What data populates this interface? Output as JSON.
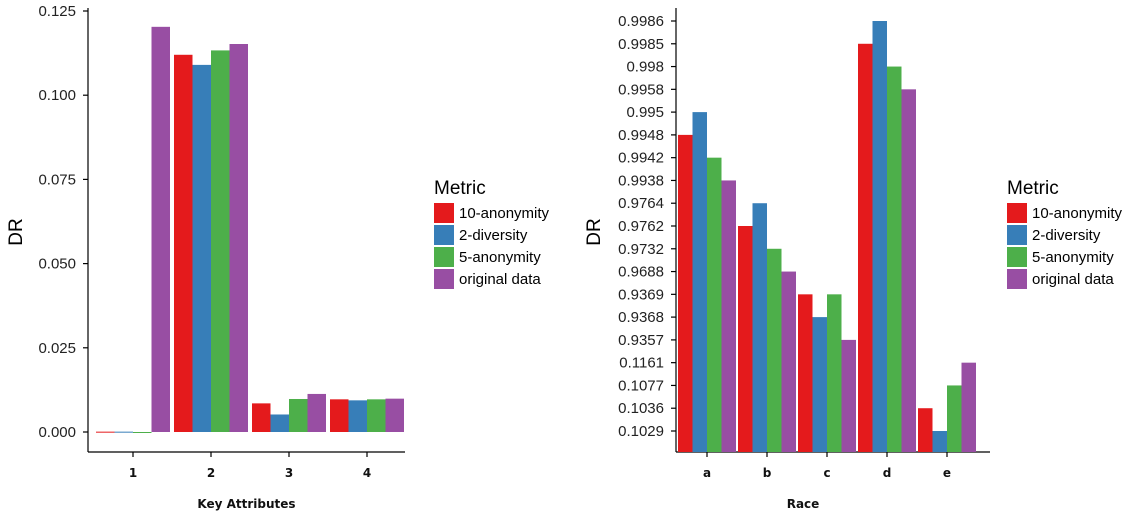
{
  "chart_data": [
    {
      "type": "bar",
      "xlabel": "Key Attributes",
      "ylabel": "DR",
      "ylim": [
        0,
        0.125
      ],
      "yticks": [
        "0.000",
        "0.025",
        "0.050",
        "0.075",
        "0.100",
        "0.125"
      ],
      "categories": [
        "1",
        "2",
        "3",
        "4"
      ],
      "series": [
        {
          "name": "10-anonymity",
          "color": "#e41a1c",
          "values": [
            0.0001,
            0.112,
            0.0085,
            0.0097
          ]
        },
        {
          "name": "2-diversity",
          "color": "#377eb8",
          "values": [
            0.0001,
            0.109,
            0.0052,
            0.0094
          ]
        },
        {
          "name": "5-anonymity",
          "color": "#4daf4a",
          "values": [
            0.0,
            0.1133,
            0.0098,
            0.0097
          ]
        },
        {
          "name": "original data",
          "color": "#984ea3",
          "values": [
            0.1203,
            0.1152,
            0.0113,
            0.0099
          ]
        }
      ],
      "legend": {
        "title": "Metric",
        "position": "right"
      },
      "grid": false
    },
    {
      "type": "bar",
      "xlabel": "Race",
      "ylabel": "DR",
      "yscale": "categorical",
      "yticks": [
        "0.1029",
        "0.1036",
        "0.1077",
        "0.1161",
        "0.9357",
        "0.9368",
        "0.9369",
        "0.9688",
        "0.9732",
        "0.9762",
        "0.9764",
        "0.9938",
        "0.9942",
        "0.9948",
        "0.995",
        "0.9958",
        "0.998",
        "0.9985",
        "0.9986"
      ],
      "categories": [
        "a",
        "b",
        "c",
        "d",
        "e"
      ],
      "series": [
        {
          "name": "10-anonymity",
          "color": "#e41a1c",
          "values": [
            0.9948,
            0.9762,
            0.9369,
            0.9985,
            0.1036
          ]
        },
        {
          "name": "2-diversity",
          "color": "#377eb8",
          "values": [
            0.995,
            0.9764,
            0.9368,
            0.9986,
            0.1029
          ]
        },
        {
          "name": "5-anonymity",
          "color": "#4daf4a",
          "values": [
            0.9942,
            0.9732,
            0.9369,
            0.998,
            0.1077
          ]
        },
        {
          "name": "original data",
          "color": "#984ea3",
          "values": [
            0.9938,
            0.9688,
            0.9357,
            0.9958,
            0.1161
          ]
        }
      ],
      "legend": {
        "title": "Metric",
        "position": "right"
      },
      "grid": false
    }
  ]
}
